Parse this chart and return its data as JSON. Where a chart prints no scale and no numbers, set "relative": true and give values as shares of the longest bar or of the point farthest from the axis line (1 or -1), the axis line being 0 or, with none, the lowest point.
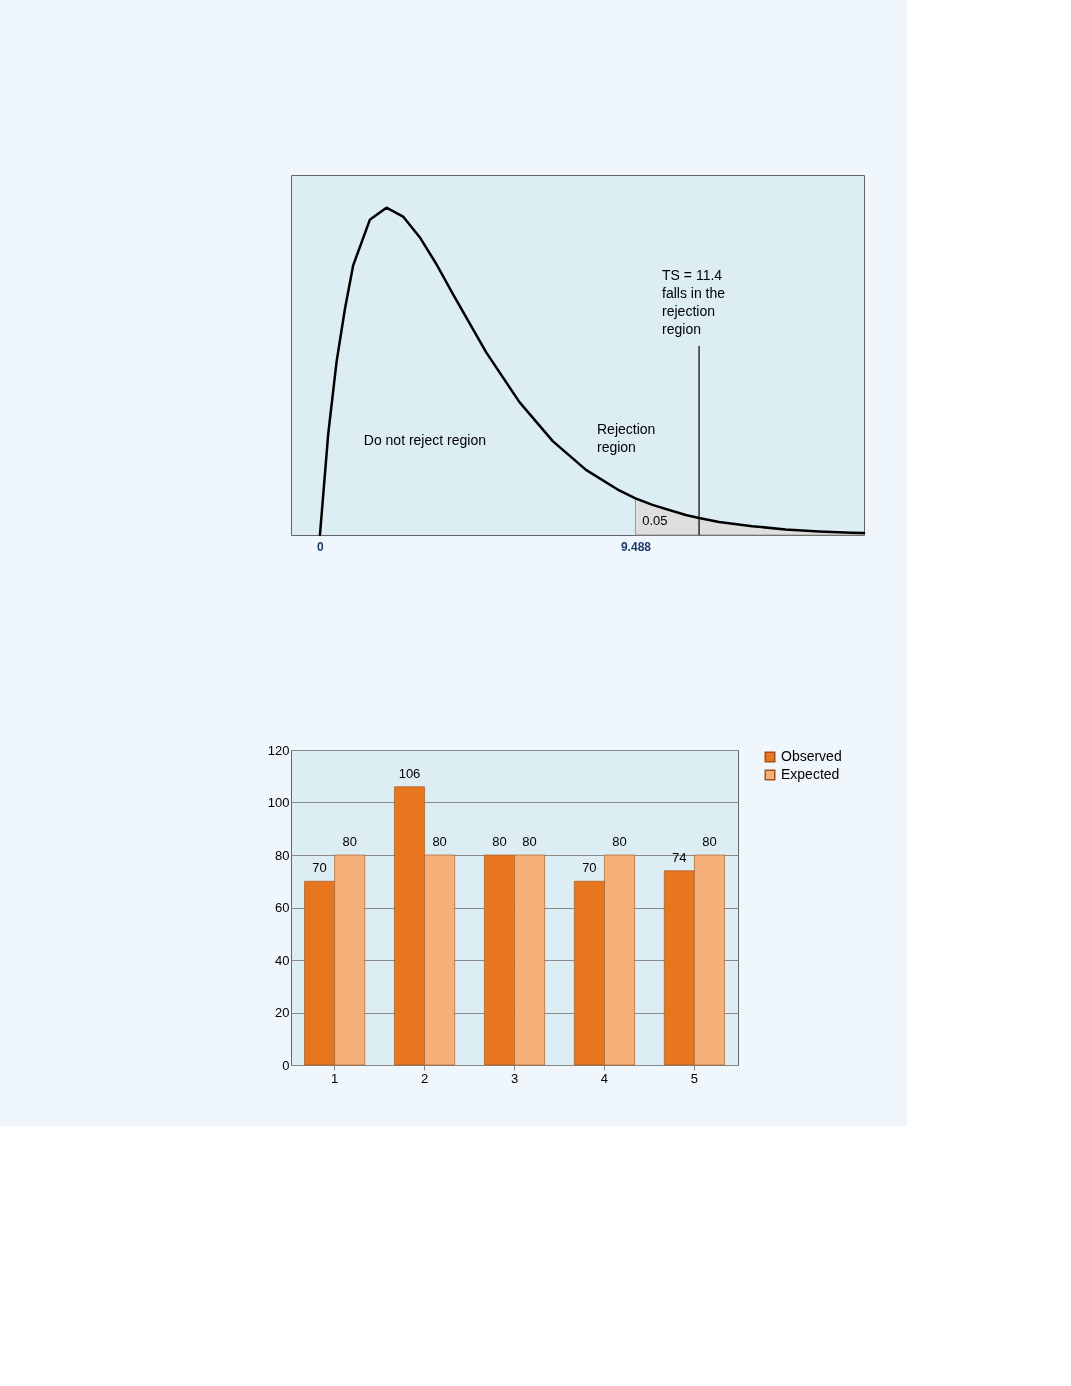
{
  "chart_data": [
    {
      "type": "line",
      "relative": true,
      "xlim": [
        -0.87,
        16.36
      ],
      "xticks": [
        0,
        9.488
      ],
      "tick_labels": "x",
      "grid": false,
      "legend": false,
      "series": [
        {
          "type": "area",
          "color": "#dedede",
          "x": [
            9.488,
            10,
            11,
            11.4,
            12,
            13,
            14,
            15,
            16,
            16.36
          ],
          "values": [
            0.112,
            0.092,
            0.061,
            0.052,
            0.04,
            0.027,
            0.017,
            0.011,
            0.007,
            0.006
          ]
        },
        {
          "type": "line",
          "color": "#000000",
          "x": [
            0,
            0.25,
            0.5,
            0.75,
            1,
            1.5,
            2,
            2.5,
            3,
            3.5,
            4,
            5,
            6,
            7,
            8,
            9,
            9.488,
            10,
            11,
            11.4,
            12,
            13,
            14,
            15,
            16,
            16.36
          ],
          "values": [
            0,
            0.31,
            0.529,
            0.69,
            0.824,
            0.963,
            1,
            0.973,
            0.91,
            0.828,
            0.736,
            0.558,
            0.406,
            0.287,
            0.199,
            0.136,
            0.112,
            0.092,
            0.061,
            0.052,
            0.04,
            0.027,
            0.017,
            0.011,
            0.007,
            0.006
          ]
        }
      ],
      "ref_lines": [
        {
          "axis": "x",
          "value": 11.4,
          "label": "TS = 11.4\nfalls in the\nrejection\nregion",
          "color": "#000000"
        }
      ],
      "annotations": [
        "Do not reject region",
        "Rejection\nregion",
        "0.05"
      ]
    },
    {
      "type": "bar",
      "categories": [
        "1",
        "2",
        "3",
        "4",
        "5"
      ],
      "ylim": [
        0,
        120
      ],
      "yticks": [
        0,
        20,
        40,
        60,
        80,
        100,
        120
      ],
      "grid": "y",
      "legend": "right",
      "data_labels": true,
      "series": [
        {
          "name": "Observed",
          "color": "#e8761e",
          "values": [
            70,
            106,
            80,
            70,
            74
          ]
        },
        {
          "name": "Expected",
          "color": "#f5b07a",
          "values": [
            80,
            80,
            80,
            80,
            80
          ]
        }
      ]
    }
  ]
}
